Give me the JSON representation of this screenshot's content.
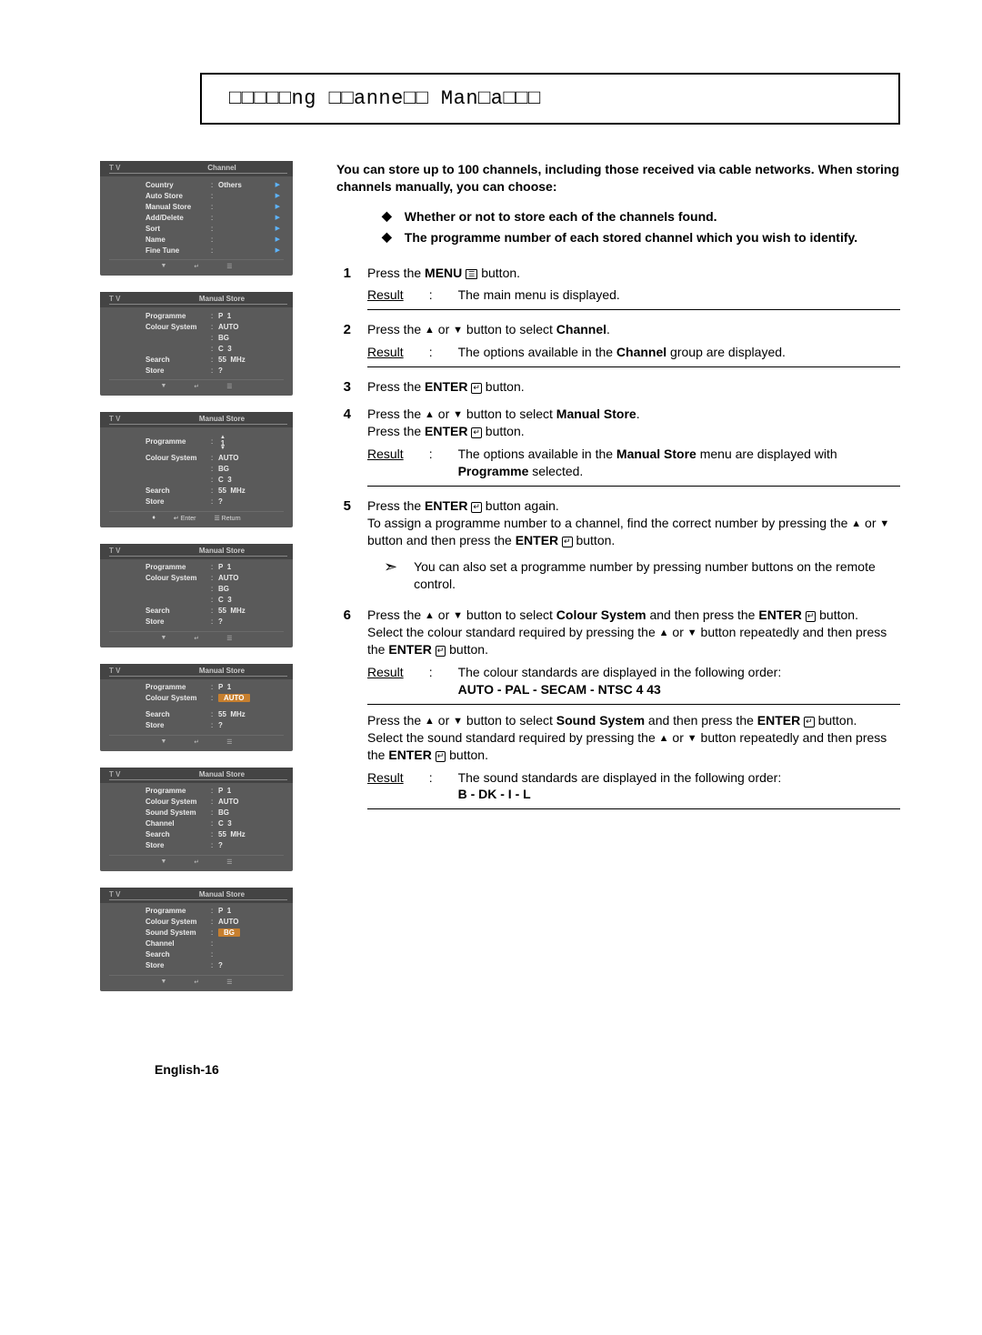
{
  "title": "□□□□□ng □□anne□□ Man□a□□□",
  "intro": "You can store up to 100 channels, including those received via cable networks. When storing channels manually, you can choose:",
  "bullets": [
    "Whether or not to store each of the channels found.",
    "The programme number of each stored channel which you wish to identify."
  ],
  "steps": {
    "1": {
      "line": "Press the <b>MENU</b> <menu>☰</menu> button.",
      "result": "The main menu is displayed."
    },
    "2": {
      "line": "Press the ▲ or ▼ button to select <b>Channel</b>.",
      "result": "The options available in the <b>Channel</b> group are displayed."
    },
    "3": {
      "line": "Press the <b>ENTER</b> <ent>↵</ent> button."
    },
    "4": {
      "l1": "Press the ▲ or ▼ button to select <b>Manual Store</b>.",
      "l2": "Press the <b>ENTER</b> <ent>↵</ent> button.",
      "result": "The options available in the <b>Manual Store</b> menu are displayed with <b>Programme</b> selected."
    },
    "5": {
      "l1": "Press the <b>ENTER</b> <ent>↵</ent> button again.",
      "l2": "To assign a programme number to a channel, find the correct number by pressing the ▲ or ▼ button and then press the <b>ENTER</b> <ent>↵</ent> button.",
      "note": "You can also set a programme number by pressing number buttons on the remote control."
    },
    "6": {
      "l1": "Press the ▲ or ▼ button to select <b>Colour System</b> and then press the <b>ENTER</b> <ent>↵</ent> button.",
      "l2": "Select the colour standard required by pressing the ▲ or ▼ button repeatedly and then press the <b>ENTER</b> <ent>↵</ent> button.",
      "result": "The colour standards are displayed in the following order:",
      "order": "AUTO - PAL - SECAM - NTSC 4 43",
      "s1": "Press the ▲ or ▼ button to select <b>Sound System</b> and then press the <b>ENTER</b> <ent>↵</ent> button.",
      "s2": "Select the sound standard required by pressing the ▲ or ▼ button repeatedly and then press the <b>ENTER</b> <ent>↵</ent> button.",
      "result2": "The sound standards are displayed in the following order:",
      "order2": "B  - DK - I - L"
    }
  },
  "tv": {
    "box1": {
      "title": "Channel",
      "rows": [
        {
          "l": "Country",
          "v": "Others",
          "arrow": true
        },
        {
          "l": "Auto Store",
          "v": "",
          "arrow": true
        },
        {
          "l": "Manual Store",
          "v": "",
          "arrow": true
        },
        {
          "l": "Add/Delete",
          "v": "",
          "arrow": true
        },
        {
          "l": "Sort",
          "v": "",
          "arrow": true
        },
        {
          "l": "Name",
          "v": "",
          "arrow": true
        },
        {
          "l": "Fine Tune",
          "v": "",
          "arrow": true
        }
      ]
    },
    "box2": {
      "title": "Manual Store",
      "rows": [
        {
          "l": "Programme",
          "v": "P   1"
        },
        {
          "l": "Colour System",
          "v": "AUTO"
        },
        {
          "l": "",
          "v": "BG"
        },
        {
          "l": "",
          "v": "C    3"
        },
        {
          "l": "Search",
          "v": "55   MHz"
        },
        {
          "l": "Store",
          "v": "?"
        }
      ]
    },
    "box3": {
      "title": "Manual Store",
      "rows": [
        {
          "l": "Programme",
          "v": "",
          "spin": true
        },
        {
          "l": "Colour System",
          "v": "AUTO"
        },
        {
          "l": "",
          "v": "BG"
        },
        {
          "l": "",
          "v": "C    3"
        },
        {
          "l": "Search",
          "v": "55   MHz"
        },
        {
          "l": "Store",
          "v": "?"
        }
      ],
      "footer2": true
    },
    "box4": {
      "title": "Manual Store",
      "rows": [
        {
          "l": "Programme",
          "v": "P   1"
        },
        {
          "l": "Colour System",
          "v": "AUTO"
        },
        {
          "l": "",
          "v": "BG"
        },
        {
          "l": "",
          "v": "C    3"
        },
        {
          "l": "Search",
          "v": "55   MHz"
        },
        {
          "l": "Store",
          "v": "?"
        }
      ]
    },
    "box5": {
      "title": "Manual Store",
      "rows": [
        {
          "l": "Programme",
          "v": "P   1"
        },
        {
          "l": "Colour System",
          "v": "",
          "hl": "AUTO"
        },
        {
          "l": "",
          "v": ""
        },
        {
          "l": "",
          "v": ""
        },
        {
          "l": "Search",
          "v": "55   MHz"
        },
        {
          "l": "Store",
          "v": "?"
        }
      ]
    },
    "box6": {
      "title": "Manual Store",
      "rows": [
        {
          "l": "Programme",
          "v": "P   1"
        },
        {
          "l": "Colour System",
          "v": "AUTO"
        },
        {
          "l": "Sound System",
          "v": "BG"
        },
        {
          "l": "Channel",
          "v": "C    3"
        },
        {
          "l": "Search",
          "v": "55   MHz"
        },
        {
          "l": "Store",
          "v": "?"
        }
      ]
    },
    "box7": {
      "title": "Manual Store",
      "rows": [
        {
          "l": "Programme",
          "v": "P   1"
        },
        {
          "l": "Colour System",
          "v": "AUTO"
        },
        {
          "l": "Sound System",
          "v": "",
          "hl": "BG"
        },
        {
          "l": "Channel",
          "v": ""
        },
        {
          "l": "Search",
          "v": ""
        },
        {
          "l": "Store",
          "v": "?"
        }
      ]
    }
  },
  "page_num": "English-16"
}
